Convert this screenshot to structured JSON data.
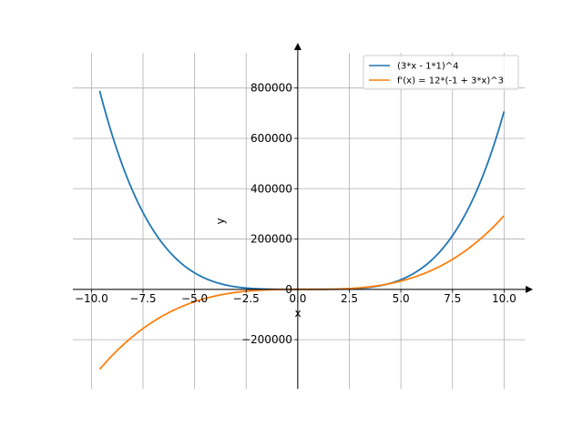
{
  "chart_data": {
    "type": "line",
    "title": "",
    "xlabel": "x",
    "ylabel": "y",
    "xlim": [
      -10.9,
      11.0
    ],
    "ylim": [
      -395000,
      940000
    ],
    "grid": true,
    "legend_position": "top-right",
    "x_ticks": [
      -10.0,
      -7.5,
      -5.0,
      -2.5,
      0.0,
      2.5,
      5.0,
      7.5,
      10.0
    ],
    "x_tick_labels": [
      "−10.0",
      "−7.5",
      "−5.0",
      "−2.5",
      "0.0",
      "2.5",
      "5.0",
      "7.5",
      "10.0"
    ],
    "y_ticks": [
      -200000,
      0,
      200000,
      400000,
      600000,
      800000
    ],
    "y_tick_labels": [
      "−200000",
      "0",
      "200000",
      "400000",
      "600000",
      "800000"
    ],
    "x_domain": [
      -9.6,
      10.0
    ],
    "series": [
      {
        "name": "(3*x - 1*1)^4",
        "color": "#1f77b4",
        "x": [
          -9.6,
          -9.0,
          -8.0,
          -7.0,
          -6.0,
          -5.0,
          -4.0,
          -3.0,
          -2.0,
          -1.0,
          0.0,
          1.0,
          2.0,
          3.0,
          4.0,
          5.0,
          6.0,
          7.0,
          8.0,
          9.0,
          10.0
        ],
        "y": [
          781000,
          614656,
          390625,
          234256,
          130321,
          65536,
          28561,
          10000,
          2401,
          256,
          1,
          16,
          625,
          4096,
          14641,
          38416,
          83521,
          160000,
          279841,
          456976,
          707281
        ]
      },
      {
        "name": "f'(x) = 12*(-1 + 3*x)^3",
        "color": "#ff7f0e",
        "x": [
          -9.6,
          -9.0,
          -8.0,
          -7.0,
          -6.0,
          -5.0,
          -4.0,
          -3.0,
          -2.0,
          -1.0,
          0.0,
          1.0,
          2.0,
          3.0,
          4.0,
          5.0,
          6.0,
          7.0,
          8.0,
          9.0,
          10.0
        ],
        "y": [
          -318000,
          -262144,
          -187500,
          -127776,
          -82308,
          -49152,
          -26364,
          -12000,
          -4116,
          -768,
          -12,
          96,
          1500,
          6144,
          15972,
          32928,
          58956,
          96000,
          145002,
          207936,
          287496
        ]
      }
    ]
  }
}
